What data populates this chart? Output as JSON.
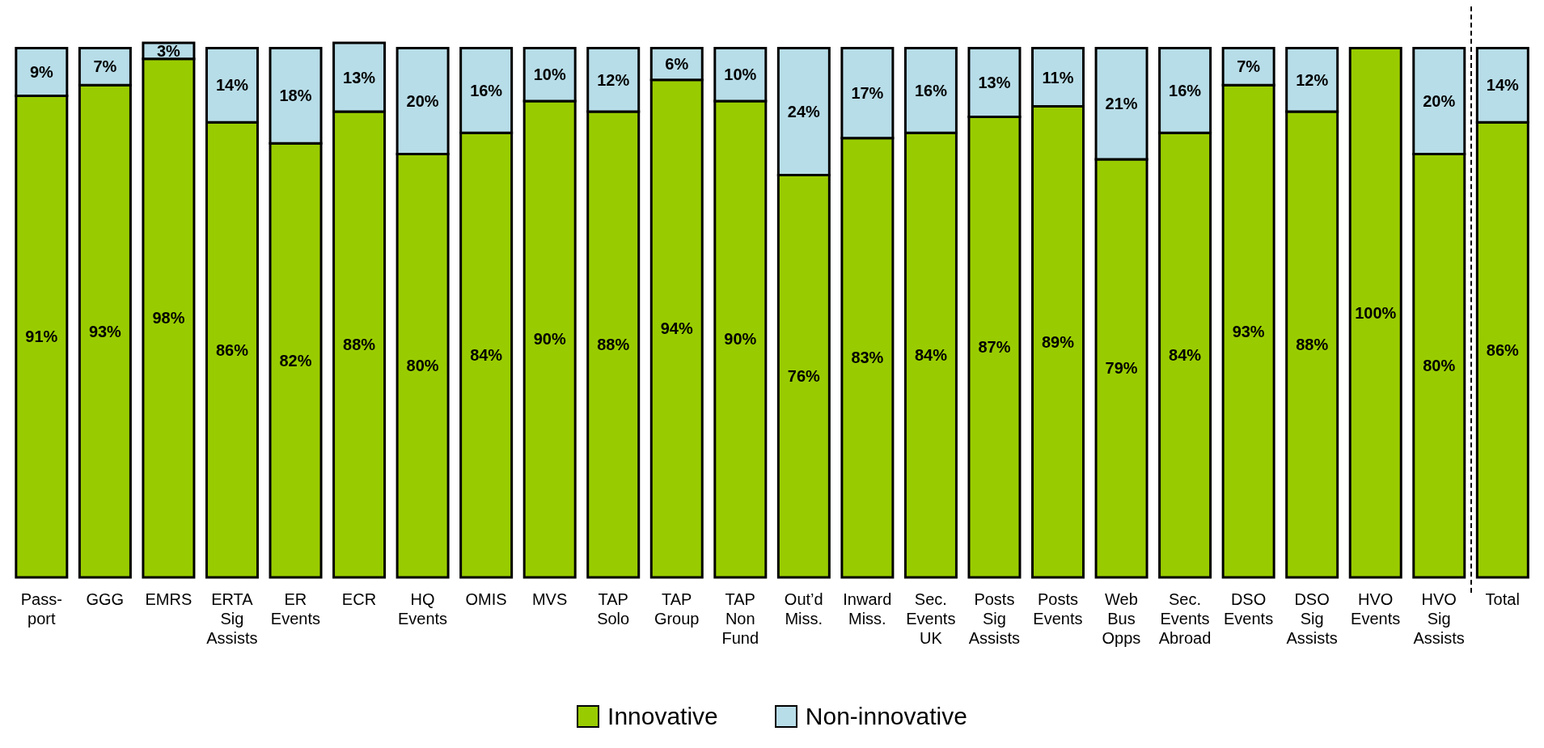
{
  "chart_data": {
    "type": "bar",
    "stacked": true,
    "legend": "bottom",
    "categories": [
      "Pass-\nport",
      "GGG",
      "EMRS",
      "ERTA\nSig\nAssists",
      "ER\nEvents",
      "ECR",
      "HQ\nEvents",
      "OMIS",
      "MVS",
      "TAP\nSolo",
      "TAP\nGroup",
      "TAP\nNon\nFund",
      "Out’d\nMiss.",
      "Inward\nMiss.",
      "Sec.\nEvents\nUK",
      "Posts\nSig\nAssists",
      "Posts\nEvents",
      "Web\nBus\nOpps",
      "Sec.\nEvents\nAbroad",
      "DSO\nEvents",
      "DSO\nSig\nAssists",
      "HVO\nEvents",
      "HVO\nSig\nAssists",
      "Total"
    ],
    "series": [
      {
        "name": "Innovative",
        "color": "#99cc00",
        "values": [
          91,
          93,
          98,
          86,
          82,
          88,
          80,
          84,
          90,
          88,
          94,
          90,
          76,
          83,
          84,
          87,
          89,
          79,
          84,
          93,
          88,
          100,
          80,
          86
        ],
        "value_labels": [
          "91%",
          "93%",
          "98%",
          "86%",
          "82%",
          "88%",
          "80%",
          "84%",
          "90%",
          "88%",
          "94%",
          "90%",
          "76%",
          "83%",
          "84%",
          "87%",
          "89%",
          "79%",
          "84%",
          "93%",
          "88%",
          "100%",
          "80%",
          "86%"
        ]
      },
      {
        "name": "Non-innovative",
        "color": "#b7dde8",
        "values": [
          9,
          7,
          3,
          14,
          18,
          13,
          20,
          16,
          10,
          12,
          6,
          10,
          24,
          17,
          16,
          13,
          11,
          21,
          16,
          7,
          12,
          0,
          20,
          14
        ],
        "value_labels": [
          "9%",
          "7%",
          "3%",
          "14%",
          "18%",
          "13%",
          "20%",
          "16%",
          "10%",
          "12%",
          "6%",
          "10%",
          "24%",
          "17%",
          "16%",
          "13%",
          "11%",
          "21%",
          "16%",
          "7%",
          "12%",
          null,
          "20%",
          "14%"
        ]
      }
    ]
  }
}
